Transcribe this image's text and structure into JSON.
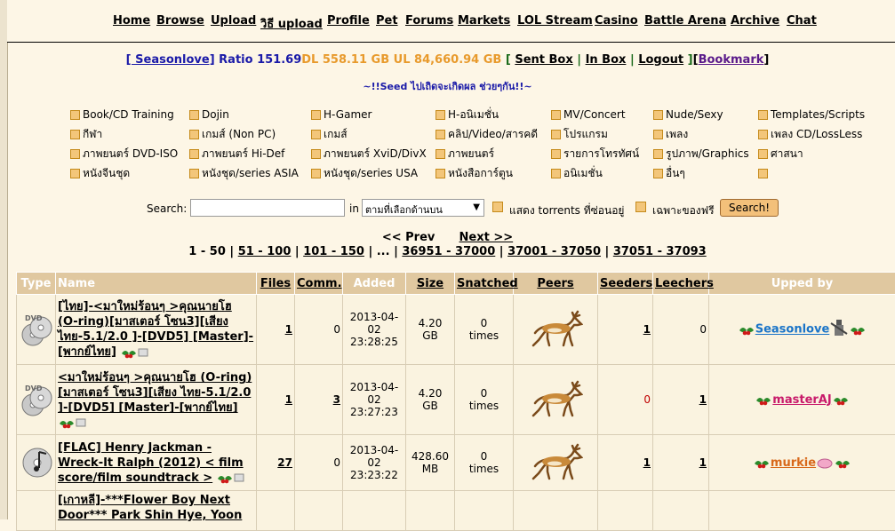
{
  "nav": {
    "items": [
      "Home",
      "Browse",
      "Upload",
      "วิธี upload",
      "Profile",
      "Pet",
      "Forums",
      "Markets",
      "LOL Stream",
      "Casino",
      "Battle Arena",
      "Archive",
      "Chat"
    ]
  },
  "user_bar": {
    "username": "[ Seasonlove]",
    "ratio": "Ratio 151.69",
    "dl": "DL 558.11 GB",
    "ul": "UL 84,660.94 GB",
    "sent_box": "Sent Box",
    "in_box": "In Box",
    "logout": "Logout",
    "bookmark": "Bookmark"
  },
  "slogan": "~!!Seed ไปเถิดจะเกิดผล ช่วยๆกัน!!~",
  "categories": [
    "Book/CD Training",
    "Dojin",
    "H-Gamer",
    "H-อนิเมชั่น",
    "MV/Concert",
    "Nude/Sexy",
    "Templates/Scripts",
    "กีฬา",
    "เกมส์ (Non PC)",
    "เกมส์",
    "คลิป/Video/สารคดี",
    "โปรแกรม",
    "เพลง",
    "เพลง CD/LossLess",
    "ภาพยนตร์ DVD-ISO",
    "ภาพยนตร์ Hi-Def",
    "ภาพยนตร์ XviD/DivX",
    "ภาพยนตร์",
    "รายการโทรทัศน์",
    "รูปภาพ/Graphics",
    "ศาสนา",
    "หนังจีนชุด",
    "หนังชุด/series ASIA",
    "หนังชุด/series USA",
    "หนังสือการ์ตูน",
    "อนิเมชั่น",
    "อื่นๆ",
    ""
  ],
  "search": {
    "label": "Search:",
    "in_label": "in",
    "selected_scope": "ตามที่เลือกด้านบน",
    "show_hidden": "แสดง torrents ที่ซ่อนอยู่",
    "free_only": "เฉพาะของฟรี",
    "button": "Search!"
  },
  "pager": {
    "prev": "<< Prev",
    "next": "Next >>",
    "current": "1 - 50",
    "pages": [
      "51 - 100",
      "101 - 150"
    ],
    "ellipsis": "...",
    "tail_pages": [
      "36951 - 37000",
      "37001 - 37050",
      "37051 - 37093"
    ]
  },
  "table": {
    "headers": {
      "type": "Type",
      "name": "Name",
      "files": "Files",
      "comm": "Comm.",
      "added": "Added",
      "size": "Size",
      "snatched": "Snatched",
      "peers": "Peers",
      "seeders": "Seeders",
      "leechers": "Leechers",
      "upped_by": "Upped by"
    },
    "rows": [
      {
        "type_icon": "dvd-icon",
        "name": "[ไทย]-<มาใหม่ร้อนๆ >คุณนายโฮ (O-ring)[มาสเตอร์ โซน3][เสียง ไทย-5.1/2.0 ]-[DVD5] [Master]-[พากย์ไทย]",
        "files": "1",
        "comments": "0",
        "added_date": "2013-04-02",
        "added_time": "23:28:25",
        "size_value": "4.20",
        "size_unit": "GB",
        "snatched": "0",
        "snatched_unit": "times",
        "seeders": "1",
        "leechers": "0",
        "uploader": "Seasonlove"
      },
      {
        "type_icon": "dvd-icon",
        "name": "<มาใหม่ร้อนๆ >คุณนายโฮ (O-ring)[มาสเตอร์ โซน3][เสียง ไทย-5.1/2.0 ]-[DVD5] [Master]-[พากย์ไทย]",
        "files": "1",
        "comments": "3",
        "added_date": "2013-04-02",
        "added_time": "23:27:23",
        "size_value": "4.20",
        "size_unit": "GB",
        "snatched": "0",
        "snatched_unit": "times",
        "seeders": "0",
        "leechers": "1",
        "uploader": "masterAJ"
      },
      {
        "type_icon": "music-cd-icon",
        "name": "[FLAC] Henry Jackman - Wreck-It Ralph (2012) < film score/film soundtrack >",
        "files": "27",
        "comments": "0",
        "added_date": "2013-04-02",
        "added_time": "23:23:22",
        "size_value": "428.60",
        "size_unit": "MB",
        "snatched": "0",
        "snatched_unit": "times",
        "seeders": "1",
        "leechers": "1",
        "uploader": "murkie"
      },
      {
        "name": "[เกาหลี]-***Flower Boy Next Door*** Park Shin Hye, Yoon"
      }
    ]
  },
  "colors": {
    "background": "#fdf6e6",
    "header_bg": "#e0c8a0",
    "link_blue": "#1a1aa8",
    "stat_orange": "#e89a2c"
  }
}
